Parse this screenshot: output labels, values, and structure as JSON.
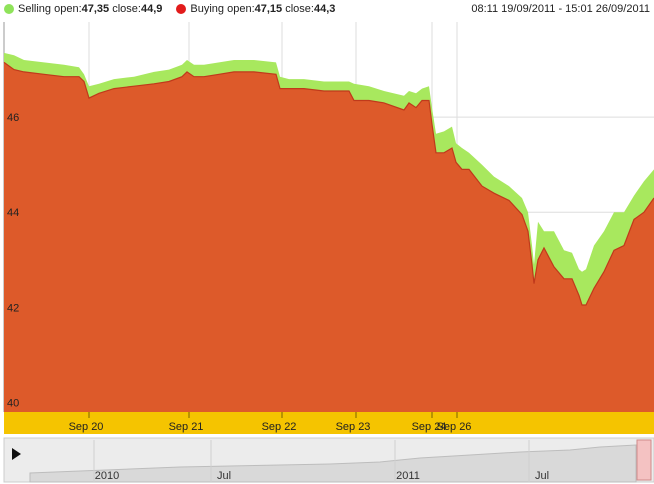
{
  "legend": {
    "selling": {
      "name": "Selling",
      "open_label": "open:",
      "open": "47,35",
      "close_label": "close:",
      "close": "44,9",
      "color": "#8fe35a"
    },
    "buying": {
      "name": "Buying",
      "open_label": "open:",
      "open": "47,15",
      "close_label": "close:",
      "close": "44,3",
      "color": "#e21b1b"
    },
    "range": "08:11 19/09/2011 - 15:01 26/09/2011"
  },
  "colors": {
    "selling_fill": "#a8e85e",
    "buying_fill": "#dd5a2a",
    "buying_line": "#c0391b",
    "axis_band": "#f5c400",
    "grid": "#dddddd",
    "navigator_bg": "#ececec"
  },
  "chart_data": {
    "type": "area",
    "ylim": [
      39.8,
      48.0
    ],
    "yticks": [
      40,
      42,
      44,
      46
    ],
    "ytick_labels": [
      "40",
      "42",
      "44",
      "46"
    ],
    "xlim": [
      0,
      650
    ],
    "xticks": [
      {
        "pos": 85,
        "label": "Sep 20"
      },
      {
        "pos": 185,
        "label": "Sep 21"
      },
      {
        "pos": 278,
        "label": "Sep 22"
      },
      {
        "pos": 352,
        "label": "Sep 23"
      },
      {
        "pos": 428,
        "label": "Sep 24"
      },
      {
        "pos": 453,
        "label": "Sep 26"
      }
    ],
    "series": [
      {
        "name": "Selling",
        "x": [
          0,
          10,
          20,
          40,
          60,
          75,
          80,
          85,
          95,
          110,
          130,
          150,
          165,
          178,
          183,
          190,
          200,
          215,
          230,
          250,
          272,
          276,
          285,
          300,
          320,
          345,
          350,
          365,
          380,
          400,
          405,
          412,
          418,
          425,
          428,
          432,
          440,
          448,
          452,
          458,
          465,
          478,
          490,
          505,
          518,
          524,
          528,
          530,
          534,
          540,
          550,
          560,
          568,
          575,
          578,
          582,
          590,
          600,
          610,
          620,
          630,
          640,
          650
        ],
        "y": [
          47.35,
          47.3,
          47.2,
          47.15,
          47.1,
          47.05,
          46.9,
          46.65,
          46.7,
          46.8,
          46.85,
          46.95,
          47.0,
          47.1,
          47.2,
          47.1,
          47.1,
          47.15,
          47.2,
          47.2,
          47.15,
          46.85,
          46.8,
          46.8,
          46.75,
          46.75,
          46.7,
          46.65,
          46.55,
          46.45,
          46.55,
          46.5,
          46.6,
          46.65,
          46.2,
          45.65,
          45.7,
          45.8,
          45.45,
          45.35,
          45.25,
          45.0,
          44.75,
          44.55,
          44.3,
          44.0,
          43.3,
          42.9,
          43.8,
          43.6,
          43.6,
          43.2,
          43.15,
          42.8,
          42.75,
          42.8,
          43.3,
          43.6,
          44.0,
          44.0,
          44.35,
          44.65,
          44.9
        ]
      },
      {
        "name": "Buying",
        "x": [
          0,
          10,
          20,
          40,
          60,
          75,
          80,
          85,
          95,
          110,
          130,
          150,
          165,
          178,
          183,
          190,
          200,
          215,
          230,
          250,
          272,
          276,
          285,
          300,
          320,
          345,
          350,
          365,
          380,
          400,
          405,
          412,
          418,
          425,
          428,
          432,
          440,
          448,
          452,
          458,
          465,
          478,
          490,
          505,
          518,
          524,
          528,
          530,
          534,
          540,
          550,
          560,
          568,
          575,
          578,
          582,
          590,
          600,
          610,
          620,
          630,
          640,
          650
        ],
        "y": [
          47.15,
          47.0,
          46.95,
          46.9,
          46.85,
          46.85,
          46.75,
          46.4,
          46.5,
          46.6,
          46.65,
          46.7,
          46.75,
          46.85,
          46.95,
          46.85,
          46.85,
          46.9,
          46.95,
          46.95,
          46.9,
          46.6,
          46.6,
          46.6,
          46.55,
          46.55,
          46.35,
          46.35,
          46.3,
          46.15,
          46.3,
          46.2,
          46.35,
          46.35,
          45.85,
          45.25,
          45.25,
          45.35,
          45.05,
          44.9,
          44.9,
          44.55,
          44.4,
          44.25,
          43.95,
          43.6,
          42.9,
          42.5,
          43.0,
          43.25,
          42.85,
          42.6,
          42.6,
          42.25,
          42.05,
          42.05,
          42.4,
          42.75,
          43.2,
          43.3,
          43.85,
          44.0,
          44.3
        ]
      }
    ]
  },
  "navigator": {
    "labels": [
      {
        "pos": 107,
        "label": "2010"
      },
      {
        "pos": 224,
        "label": "Jul"
      },
      {
        "pos": 408,
        "label": "2011"
      },
      {
        "pos": 542,
        "label": "Jul"
      }
    ]
  }
}
